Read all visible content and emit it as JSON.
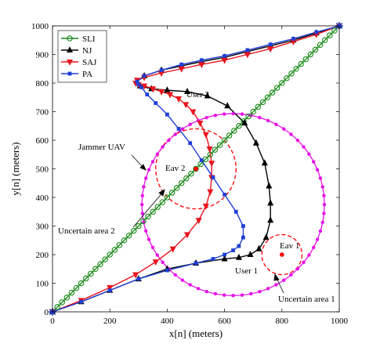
{
  "chart_data": {
    "type": "line",
    "xlabel": "x[n] (meters)",
    "ylabel": "y[n] (meters)",
    "xlim": [
      0,
      1000
    ],
    "ylim": [
      0,
      1000
    ],
    "xticks": [
      0,
      200,
      400,
      600,
      800,
      1000
    ],
    "yticks": [
      0,
      100,
      200,
      300,
      400,
      500,
      600,
      700,
      800,
      900,
      1000
    ],
    "grid": false,
    "legend": "top-left",
    "series": [
      {
        "name": "SLI",
        "color": "#1a8a1a",
        "marker": "circle",
        "x": [
          0,
          1000
        ],
        "y": [
          0,
          1000
        ],
        "samples": 61
      },
      {
        "name": "NJ",
        "color": "#000000",
        "marker": "triangle-up",
        "x": [
          0,
          100,
          200,
          300,
          400,
          500,
          600,
          650,
          690,
          720,
          745,
          760,
          760,
          755,
          740,
          710,
          670,
          610,
          540,
          470,
          400,
          345,
          305,
          295,
          320,
          380,
          450,
          520,
          600,
          680,
          760,
          840,
          920,
          1000
        ],
        "y": [
          0,
          35,
          75,
          115,
          150,
          170,
          185,
          190,
          200,
          220,
          260,
          320,
          380,
          440,
          520,
          590,
          660,
          720,
          755,
          770,
          775,
          780,
          790,
          805,
          825,
          845,
          860,
          875,
          890,
          910,
          930,
          950,
          975,
          1000
        ]
      },
      {
        "name": "SAJ",
        "color": "#e8141d",
        "marker": "triangle-down",
        "x": [
          0,
          100,
          200,
          290,
          360,
          420,
          470,
          510,
          535,
          550,
          555,
          555,
          548,
          535,
          515,
          490,
          465,
          440,
          410,
          380,
          350,
          320,
          300,
          290,
          295,
          320,
          380,
          450,
          520,
          600,
          680,
          760,
          840,
          920,
          1000
        ],
        "y": [
          0,
          40,
          85,
          130,
          175,
          220,
          270,
          320,
          370,
          420,
          470,
          520,
          570,
          620,
          660,
          700,
          725,
          745,
          760,
          770,
          780,
          790,
          795,
          800,
          810,
          820,
          835,
          850,
          865,
          880,
          900,
          920,
          945,
          970,
          1000
        ]
      },
      {
        "name": "PA",
        "color": "#1f3fd6",
        "marker": "square",
        "x": [
          0,
          100,
          200,
          300,
          400,
          500,
          560,
          600,
          630,
          650,
          665,
          665,
          640,
          600,
          560,
          520,
          480,
          440,
          400,
          360,
          330,
          310,
          300,
          295,
          320,
          380,
          450,
          520,
          600,
          680,
          760,
          840,
          920,
          1000
        ],
        "y": [
          0,
          35,
          75,
          115,
          145,
          170,
          185,
          200,
          215,
          230,
          260,
          300,
          350,
          410,
          470,
          530,
          590,
          640,
          690,
          730,
          760,
          785,
          795,
          805,
          825,
          845,
          865,
          880,
          895,
          915,
          935,
          955,
          978,
          1000
        ]
      }
    ],
    "circles": [
      {
        "role": "uncertain-area-2",
        "cx": 500,
        "cy": 500,
        "r": 140,
        "color": "#ff0000",
        "dashed": true
      },
      {
        "role": "uncertain-area-1",
        "cx": 800,
        "cy": 200,
        "r": 70,
        "color": "#ff0000",
        "dashed": true
      },
      {
        "role": "jammer-orbit",
        "cx": 630,
        "cy": 375,
        "r": 318,
        "color": "#e610e6",
        "samples": 64
      }
    ],
    "points": [
      {
        "role": "eav-1-location",
        "x": 800,
        "y": 200,
        "color": "#ff0000"
      },
      {
        "role": "eav-2-location",
        "x": 500,
        "y": 500,
        "color": "#ff0000"
      }
    ],
    "annotations": [
      {
        "key": "user2",
        "text": "User 2"
      },
      {
        "key": "jammer",
        "text": "Jammer UAV"
      },
      {
        "key": "eav2",
        "text": "Eav 2"
      },
      {
        "key": "eav1",
        "text": "Eav 1"
      },
      {
        "key": "uarea2",
        "text": "Uncertain area 2"
      },
      {
        "key": "user1",
        "text": "User 1"
      },
      {
        "key": "uarea1",
        "text": "Uncertain area 1"
      }
    ]
  }
}
